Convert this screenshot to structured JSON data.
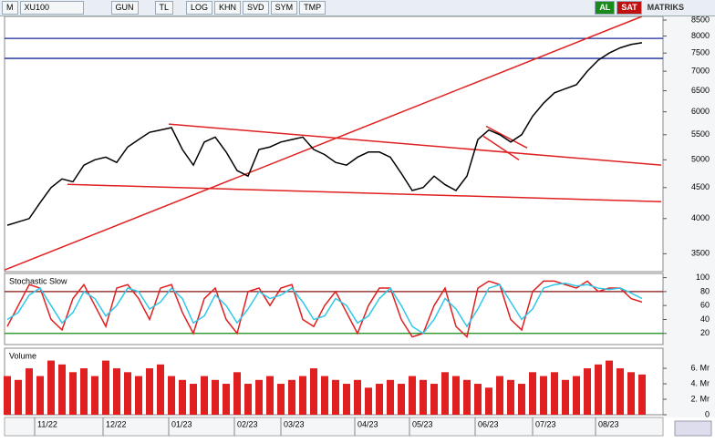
{
  "toolbar": {
    "logo": "M",
    "symbol": "XU100",
    "period": "GUN",
    "currency": "TL",
    "buttons": [
      "LOG",
      "KHN",
      "SVD",
      "SYM",
      "TMP"
    ],
    "buy": "AL",
    "sell": "SAT",
    "brand": "MATRIKS"
  },
  "chart_data": [
    {
      "type": "line",
      "log": true,
      "xlim": [
        0,
        240
      ],
      "ylim": [
        3270,
        8620
      ],
      "yticks": [
        3500,
        4000,
        4500,
        5000,
        5500,
        6000,
        6500,
        7000,
        7500,
        8000,
        8500
      ],
      "x": [
        1,
        5,
        9,
        13,
        17,
        21,
        25,
        29,
        33,
        37,
        41,
        45,
        49,
        53,
        57,
        61,
        65,
        69,
        73,
        77,
        81,
        85,
        89,
        93,
        97,
        101,
        105,
        109,
        113,
        117,
        121,
        125,
        129,
        133,
        137,
        141,
        145,
        149,
        153,
        157,
        161,
        165,
        169,
        173,
        177,
        181,
        185,
        189,
        193,
        197,
        201,
        205,
        209,
        213,
        217,
        221,
        225,
        229,
        233
      ],
      "series": [
        {
          "color": "#000000",
          "values": [
            3900,
            3950,
            4000,
            4250,
            4500,
            4650,
            4600,
            4900,
            5000,
            5050,
            4950,
            5250,
            5400,
            5550,
            5600,
            5650,
            5200,
            4900,
            5350,
            5450,
            5150,
            4800,
            4700,
            5200,
            5250,
            5350,
            5400,
            5450,
            5200,
            5100,
            4950,
            4900,
            5050,
            5150,
            5150,
            5050,
            4750,
            4450,
            4500,
            4700,
            4550,
            4450,
            4700,
            5400,
            5600,
            5500,
            5350,
            5500,
            5900,
            6200,
            6450,
            6550,
            6650,
            7000,
            7300,
            7500,
            7650,
            7750,
            7800
          ]
        }
      ],
      "hlines": [
        {
          "value": 7930,
          "color": "#1a2a9a"
        },
        {
          "value": 7350,
          "color": "#1a2a9a"
        }
      ],
      "trendlines": [
        {
          "x": [
            0,
            233
          ],
          "y": [
            3290,
            8620
          ],
          "color": "#e02020"
        },
        {
          "x": [
            60,
            240
          ],
          "y": [
            5727,
            4900
          ],
          "color": "#e02020"
        },
        {
          "x": [
            23,
            240
          ],
          "y": [
            4555,
            4265
          ],
          "color": "#e02020"
        },
        {
          "x": [
            176,
            191
          ],
          "y": [
            5680,
            5230
          ],
          "color": "#e02020"
        },
        {
          "x": [
            175,
            188
          ],
          "y": [
            5470,
            5000
          ],
          "color": "#e02020"
        }
      ]
    },
    {
      "type": "line",
      "title": "Stochastic Slow",
      "xlim": [
        0,
        240
      ],
      "ylim": [
        4,
        106
      ],
      "yticks": [
        20,
        40,
        60,
        80,
        100
      ],
      "x": [
        1,
        5,
        9,
        13,
        17,
        21,
        25,
        29,
        33,
        37,
        41,
        45,
        49,
        53,
        57,
        61,
        65,
        69,
        73,
        77,
        81,
        85,
        89,
        93,
        97,
        101,
        105,
        109,
        113,
        117,
        121,
        125,
        129,
        133,
        137,
        141,
        145,
        149,
        153,
        157,
        161,
        165,
        169,
        173,
        177,
        181,
        185,
        189,
        193,
        197,
        201,
        205,
        209,
        213,
        217,
        221,
        225,
        229,
        233
      ],
      "series": [
        {
          "color": "#e02020",
          "values": [
            30,
            60,
            90,
            85,
            40,
            25,
            70,
            90,
            60,
            30,
            85,
            90,
            70,
            40,
            85,
            90,
            50,
            20,
            70,
            85,
            40,
            20,
            80,
            85,
            60,
            85,
            90,
            40,
            30,
            60,
            80,
            50,
            20,
            60,
            85,
            85,
            40,
            15,
            20,
            60,
            85,
            30,
            15,
            85,
            95,
            90,
            40,
            25,
            80,
            95,
            95,
            90,
            85,
            95,
            80,
            85,
            85,
            70,
            65
          ]
        },
        {
          "color": "#30c8e8",
          "values": [
            40,
            50,
            75,
            85,
            60,
            35,
            50,
            80,
            70,
            45,
            60,
            85,
            80,
            55,
            65,
            85,
            70,
            35,
            45,
            75,
            60,
            35,
            55,
            80,
            70,
            75,
            85,
            65,
            40,
            45,
            70,
            60,
            35,
            45,
            70,
            85,
            60,
            30,
            20,
            40,
            70,
            55,
            30,
            55,
            85,
            90,
            65,
            40,
            55,
            85,
            90,
            92,
            88,
            90,
            85,
            83,
            85,
            78,
            70
          ]
        }
      ],
      "hlines": [
        {
          "value": 80,
          "color": "#8b1010"
        },
        {
          "value": 20,
          "color": "#108b10"
        }
      ]
    },
    {
      "type": "bar",
      "title": "Volume",
      "xlim": [
        0,
        240
      ],
      "ylim": [
        0,
        8.6
      ],
      "yticks": [
        0,
        {
          "value": 2,
          "label": "2. Mr"
        },
        {
          "value": 4,
          "label": "4. Mr"
        },
        {
          "value": 6,
          "label": "6. Mr"
        }
      ],
      "xticks": [
        {
          "value": 11,
          "label": "11/22"
        },
        {
          "value": 36,
          "label": "12/22"
        },
        {
          "value": 60,
          "label": "01/23"
        },
        {
          "value": 84,
          "label": "02/23"
        },
        {
          "value": 101,
          "label": "03/23"
        },
        {
          "value": 128,
          "label": "04/23"
        },
        {
          "value": 148,
          "label": "05/23"
        },
        {
          "value": 172,
          "label": "06/23"
        },
        {
          "value": 193,
          "label": "07/23"
        },
        {
          "value": 216,
          "label": "08/23"
        }
      ],
      "x": [
        1,
        5,
        9,
        13,
        17,
        21,
        25,
        29,
        33,
        37,
        41,
        45,
        49,
        53,
        57,
        61,
        65,
        69,
        73,
        77,
        81,
        85,
        89,
        93,
        97,
        101,
        105,
        109,
        113,
        117,
        121,
        125,
        129,
        133,
        137,
        141,
        145,
        149,
        153,
        157,
        161,
        165,
        169,
        173,
        177,
        181,
        185,
        189,
        193,
        197,
        201,
        205,
        209,
        213,
        217,
        221,
        225,
        229,
        233
      ],
      "color": "#e02020",
      "values": [
        5,
        4.5,
        6,
        5,
        7,
        6.5,
        5.5,
        6,
        5,
        7,
        6,
        5.5,
        5,
        6,
        6.5,
        5,
        4.5,
        4,
        5,
        4.5,
        4,
        5.5,
        4,
        4.5,
        5,
        4,
        4.5,
        5,
        6,
        5,
        4.5,
        4,
        4.5,
        3.5,
        4,
        4.5,
        4,
        5,
        4.5,
        4,
        5.5,
        5,
        4.5,
        4,
        3.5,
        5,
        4.5,
        4,
        5.5,
        5,
        5.5,
        4.5,
        5,
        6,
        6.5,
        7,
        6,
        5.5,
        5.2
      ]
    }
  ]
}
